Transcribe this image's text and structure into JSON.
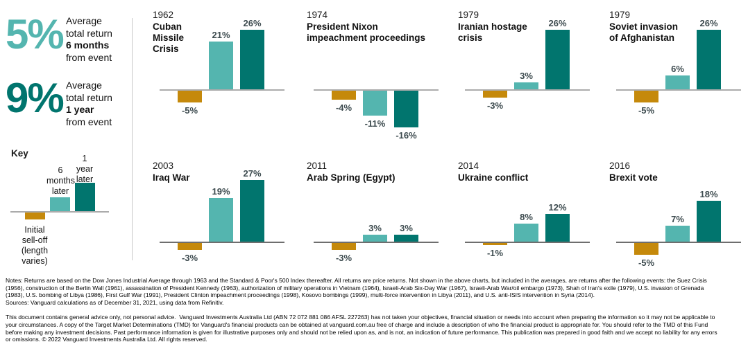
{
  "stats": {
    "six_months": {
      "number": "5%",
      "line1": "Average",
      "line2": "total return",
      "line3": "6 months",
      "line4": "from event"
    },
    "one_year": {
      "number": "9%",
      "line1": "Average",
      "line2": "total return",
      "line3": "1 year",
      "line4": "from event"
    }
  },
  "key": {
    "label": "Key",
    "six_months_label": "6\nmonths\nlater",
    "one_year_label": "1\nyear\nlater",
    "initial_label": "Initial\nsell-off\n(length\nvaries)"
  },
  "colors": {
    "initial_selloff": "#C5890B",
    "six_months_bar": "#54B5AF",
    "one_year_bar": "#01756E",
    "value_label": "#3D4B4F",
    "axis_top": "#ABABAB",
    "axis_bottom": "#6E6E6E",
    "divider": "#C8C8C8"
  },
  "chart_data": [
    {
      "type": "bar",
      "year": "1962",
      "title": "Cuban Missile Crisis",
      "title_display": "Cuban\nMissile\nCrisis",
      "categories": [
        "Initial sell-off",
        "6 months later",
        "1 year later"
      ],
      "values": [
        -5,
        21,
        26
      ],
      "unit": "%"
    },
    {
      "type": "bar",
      "year": "1974",
      "title": "President Nixon impeachment proceedings",
      "title_display": "President Nixon\nimpeachment proceedings",
      "categories": [
        "Initial sell-off",
        "6 months later",
        "1 year later"
      ],
      "values": [
        -4,
        -11,
        -16
      ],
      "unit": "%"
    },
    {
      "type": "bar",
      "year": "1979",
      "title": "Iranian hostage crisis",
      "title_display": "Iranian hostage\ncrisis",
      "categories": [
        "Initial sell-off",
        "6 months later",
        "1 year later"
      ],
      "values": [
        -3,
        3,
        26
      ],
      "unit": "%"
    },
    {
      "type": "bar",
      "year": "1979",
      "title": "Soviet invasion of Afghanistan",
      "title_display": "Soviet invasion\nof Afghanistan",
      "categories": [
        "Initial sell-off",
        "6 months later",
        "1 year later"
      ],
      "values": [
        -5,
        6,
        26
      ],
      "unit": "%"
    },
    {
      "type": "bar",
      "year": "2003",
      "title": "Iraq War",
      "title_display": "Iraq War",
      "categories": [
        "Initial sell-off",
        "6 months later",
        "1 year later"
      ],
      "values": [
        -3,
        19,
        27
      ],
      "unit": "%"
    },
    {
      "type": "bar",
      "year": "2011",
      "title": "Arab Spring (Egypt)",
      "title_display": "Arab Spring (Egypt)",
      "categories": [
        "Initial sell-off",
        "6 months later",
        "1 year later"
      ],
      "values": [
        -3,
        3,
        3
      ],
      "unit": "%"
    },
    {
      "type": "bar",
      "year": "2014",
      "title": "Ukraine conflict",
      "title_display": "Ukraine conflict",
      "categories": [
        "Initial sell-off",
        "6 months later",
        "1 year later"
      ],
      "values": [
        -1,
        8,
        12
      ],
      "unit": "%"
    },
    {
      "type": "bar",
      "year": "2016",
      "title": "Brexit vote",
      "title_display": "Brexit vote",
      "categories": [
        "Initial sell-off",
        "6 months later",
        "1 year later"
      ],
      "values": [
        -5,
        7,
        18
      ],
      "unit": "%"
    }
  ],
  "notes": {
    "lines": [
      "Notes: Returns are based on the Dow Jones Industrial Average through 1963 and the Standard & Poor's 500 Index thereafter. All returns are price returns. Not shown in the above charts, but included in the averages, are returns after the following events: the Suez Crisis",
      "(1956), construction of the Berlin Wall (1961), assassination of President Kennedy (1963), authorization of military operations in Vietnam (1964), Israeli-Arab Six-Day War (1967), Israeli-Arab War/oil embargo (1973), Shah of Iran's exile (1979), U.S. invasion of Grenada",
      "(1983), U.S. bombing of Libya (1986), First Gulf War (1991), President Clinton impeachment proceedings (1998), Kosovo bombings (1999), multi-force intervention in Libya (2011), and U.S. anti-ISIS intervention in Syria (2014).",
      "Sources: Vanguard calculations as of December 31, 2021, using data from Refinitiv."
    ]
  },
  "disclaimer": {
    "lines": [
      "This document contains general advice only, not personal advice.  Vanguard Investments Australia Ltd (ABN 72 072 881 086 AFSL 227263) has not taken your objectives, financial situation or needs into account when preparing the information so it may not be applicable to",
      "your circumstances. A copy of the Target Market Determinations (TMD) for Vanguard's financial products can be obtained at vanguard.com.au free of charge and include a description of who the financial product is appropriate for. You should refer to the TMD of this Fund",
      "before making any investment decisions. Past performance information is given for illustrative purposes only and should not be relied upon as, and is not, an indication of future performance. This publication was prepared in good faith and we accept no liability for any errors",
      "or omissions. © 2022 Vanguard Investments Australia Ltd. All rights reserved."
    ]
  }
}
